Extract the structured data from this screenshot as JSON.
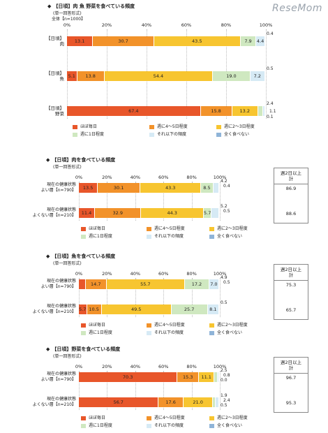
{
  "watermark": "ReseMom",
  "legend_labels": [
    "ほぼ毎日",
    "週に4～5日程度",
    "週に2～3日程度",
    "週に1日程度",
    "それ以下の頻度",
    "全く食べない"
  ],
  "colors": [
    "#e8562a",
    "#f2922a",
    "#f7c530",
    "#cfe8c0",
    "#d6eaf5",
    "#8fb4d8"
  ],
  "chart_data": [
    {
      "type": "bar",
      "title": "【日頃】肉 魚 野菜を食べている頻度",
      "subtitle": "(単一回答形式)",
      "base_label": "全体【n=1000】",
      "ticks": [
        "0%",
        "20%",
        "40%",
        "60%",
        "80%",
        "100%"
      ],
      "categories": [
        "【日頃】\n肉",
        "【日頃】\n魚",
        "【日頃】\n野菜"
      ],
      "values": [
        [
          13.1,
          30.7,
          43.5,
          7.9,
          4.4,
          0.4
        ],
        [
          5.1,
          13.8,
          54.4,
          19.0,
          7.2,
          0.5
        ],
        [
          67.4,
          15.8,
          13.2,
          2.4,
          1.1,
          0.1
        ]
      ],
      "series": [
        "ほぼ毎日",
        "週に4～5日程度",
        "週に2～3日程度",
        "週に1日程度",
        "それ以下の頻度",
        "全く食べない"
      ]
    },
    {
      "type": "bar",
      "title": "【日頃】肉を食べている頻度",
      "subtitle": "(単一回答形式)",
      "ticks": [
        "0%",
        "20%",
        "40%",
        "60%",
        "80%",
        "100%"
      ],
      "categories": [
        "現在の健康状態\nよい層【n=790】",
        "現在の健康状態\nよくない層【n=210】"
      ],
      "values": [
        [
          13.5,
          30.1,
          43.3,
          8.5,
          4.2,
          0.4
        ],
        [
          11.4,
          32.9,
          44.3,
          5.7,
          5.2,
          0.5
        ]
      ],
      "summary_header": "週2日以上\n計",
      "summary": [
        "86.9",
        "88.6"
      ]
    },
    {
      "type": "bar",
      "title": "【日頃】魚を食べている頻度",
      "subtitle": "(単一回答形式)",
      "ticks": [
        "0%",
        "20%",
        "40%",
        "60%",
        "80%",
        "100%"
      ],
      "categories": [
        "現在の健康状態\nよい層【n=790】",
        "現在の健康状態\nよくない層【n=210】"
      ],
      "values": [
        [
          4.9,
          14.7,
          55.7,
          17.2,
          7.0,
          0.5
        ],
        [
          5.7,
          10.5,
          49.5,
          25.7,
          8.1,
          0.5
        ]
      ],
      "summary_header": "週2日以上\n計",
      "summary": [
        "75.3",
        "65.7"
      ]
    },
    {
      "type": "bar",
      "title": "【日頃】野菜を食べている頻度",
      "subtitle": "(単一回答形式)",
      "ticks": [
        "0%",
        "20%",
        "40%",
        "60%",
        "80%",
        "100%"
      ],
      "categories": [
        "現在の健康状態\nよい層【n=790】",
        "現在の健康状態\nよくない層【n=210】"
      ],
      "values": [
        [
          70.3,
          15.3,
          11.1,
          2.5,
          0.8,
          0.0
        ],
        [
          56.7,
          17.6,
          21.0,
          1.9,
          2.4,
          0.5
        ]
      ],
      "summary_header": "週2日以上\n計",
      "summary": [
        "96.7",
        "95.3"
      ]
    }
  ]
}
